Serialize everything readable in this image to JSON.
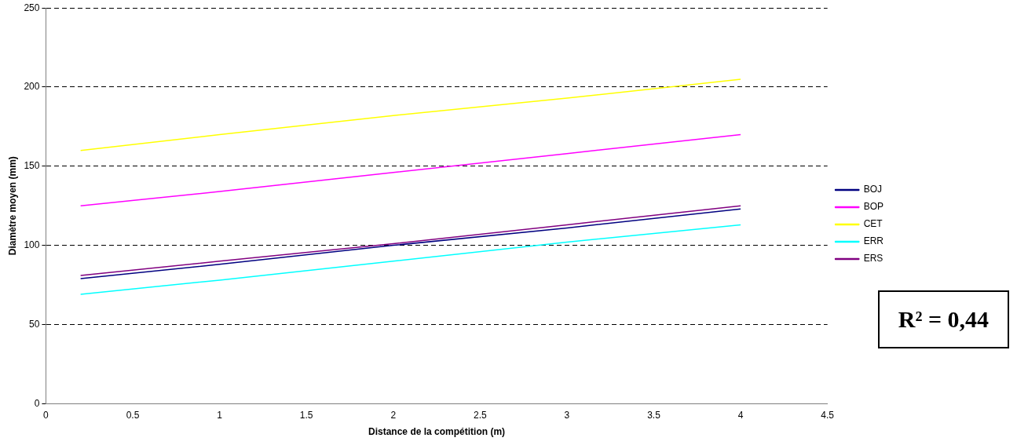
{
  "chart_data": {
    "type": "line",
    "xlabel": "Distance de la compétition (m)",
    "ylabel": "Diamètre moyen (mm)",
    "x": [
      0.2,
      1,
      2,
      3,
      4
    ],
    "series": [
      {
        "name": "BOJ",
        "color": "#000080",
        "values": [
          79,
          88,
          100,
          111,
          123
        ]
      },
      {
        "name": "BOP",
        "color": "#ff00ff",
        "values": [
          125,
          134,
          146,
          158,
          170
        ]
      },
      {
        "name": "CET",
        "color": "#ffff00",
        "values": [
          160,
          170,
          182,
          193,
          205
        ]
      },
      {
        "name": "ERR",
        "color": "#00ffff",
        "values": [
          69,
          78,
          90,
          102,
          113
        ]
      },
      {
        "name": "ERS",
        "color": "#800080",
        "values": [
          81,
          90,
          101,
          113,
          125
        ]
      }
    ],
    "xlim": [
      0,
      4.5
    ],
    "xticks": [
      0,
      0.5,
      1,
      1.5,
      2,
      2.5,
      3,
      3.5,
      4,
      4.5
    ],
    "ylim": [
      0,
      250
    ],
    "yticks": [
      0,
      50,
      100,
      150,
      200,
      250
    ],
    "grid": "y",
    "legend": "right",
    "marker": "none",
    "line_style": "solid",
    "annotations": [
      "R² = 0,44"
    ]
  }
}
